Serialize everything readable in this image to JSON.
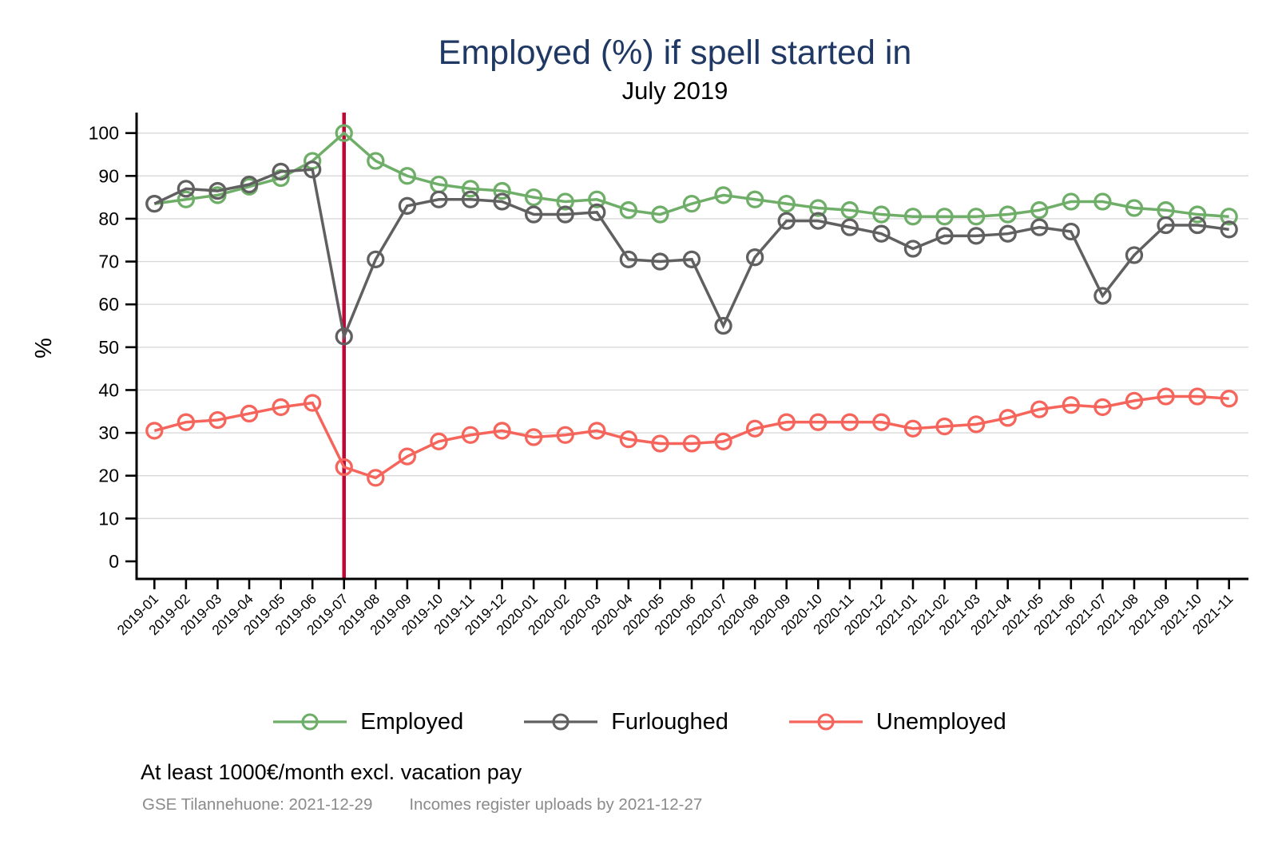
{
  "header": {
    "title": "Employed (%) if spell started in",
    "subtitle": "July 2019"
  },
  "footer": {
    "note": "At least 1000€/month excl. vacation pay",
    "source_left": "GSE Tilannehuone: 2021-12-29",
    "source_right": "Incomes register uploads by 2021-12-27"
  },
  "colors": {
    "title_navy": "#1f3864",
    "employed_green": "#6fae68",
    "furloughed_gray": "#606060",
    "unemployed_red": "#f5655c",
    "event_line_crimson": "#c10534",
    "grid_gray": "#d9d9d9",
    "source_text_gray": "#8a8a8a"
  },
  "chart_data": {
    "type": "line",
    "title": "Employed (%) if spell started in",
    "subtitle": "July 2019",
    "xlabel": "",
    "ylabel": "%",
    "ylim": [
      0,
      100
    ],
    "ytick_step": 10,
    "grid": "horizontal",
    "legend_position": "bottom",
    "x": [
      "2019-01",
      "2019-02",
      "2019-03",
      "2019-04",
      "2019-05",
      "2019-06",
      "2019-07",
      "2019-08",
      "2019-09",
      "2019-10",
      "2019-11",
      "2019-12",
      "2020-01",
      "2020-02",
      "2020-03",
      "2020-04",
      "2020-05",
      "2020-06",
      "2020-07",
      "2020-08",
      "2020-09",
      "2020-10",
      "2020-11",
      "2020-12",
      "2021-01",
      "2021-02",
      "2021-03",
      "2021-04",
      "2021-05",
      "2021-06",
      "2021-07",
      "2021-08",
      "2021-09",
      "2021-10",
      "2021-11"
    ],
    "series": [
      {
        "name": "Employed",
        "color": "#6fae68",
        "values": [
          83.5,
          84.5,
          85.5,
          87.5,
          89.5,
          93.5,
          100,
          93.5,
          90,
          88,
          87,
          86.5,
          85,
          84,
          84.5,
          82,
          81,
          83.5,
          85.5,
          84.5,
          83.5,
          82.5,
          82,
          81,
          80.5,
          80.5,
          80.5,
          81,
          82,
          84,
          84,
          82.5,
          82,
          81,
          80.5
        ]
      },
      {
        "name": "Furloughed",
        "color": "#606060",
        "values": [
          83.5,
          87,
          86.5,
          88,
          91,
          91.5,
          52.5,
          70.5,
          83,
          84.5,
          84.5,
          84,
          81,
          81,
          81.5,
          70.5,
          70,
          70.5,
          55,
          71,
          79.5,
          79.5,
          78,
          76.5,
          73,
          76,
          76,
          76.5,
          78,
          77,
          62,
          71.5,
          78.5,
          78.5,
          77.5
        ]
      },
      {
        "name": "Unemployed",
        "color": "#f5655c",
        "values": [
          30.5,
          32.5,
          33,
          34.5,
          36,
          37,
          22,
          19.5,
          24.5,
          28,
          29.5,
          30.5,
          29,
          29.5,
          30.5,
          28.5,
          27.5,
          27.5,
          28,
          31,
          32.5,
          32.5,
          32.5,
          32.5,
          31,
          31.5,
          32,
          33.5,
          35.5,
          36.5,
          36,
          37.5,
          38.5,
          38.5,
          38
        ]
      }
    ],
    "annotations": [
      {
        "type": "vline",
        "x": "2019-07",
        "color": "#c10534"
      }
    ]
  }
}
